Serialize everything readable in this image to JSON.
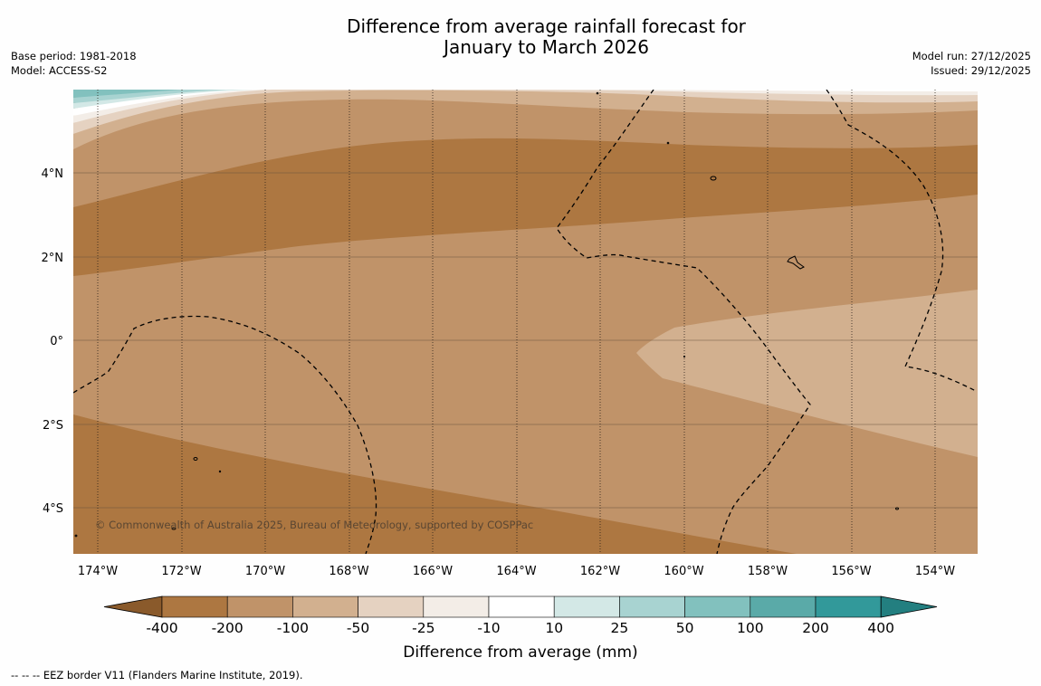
{
  "title": {
    "line1": "Difference from average rainfall forecast for",
    "line2": "January to March 2026"
  },
  "meta": {
    "base_period": "Base period: 1981-2018",
    "model": "Model: ACCESS-S2",
    "model_run": "Model run: 27/12/2025",
    "issued": "Issued: 29/12/2025"
  },
  "map": {
    "lat_labels": [
      "4°N",
      "2°N",
      "0°",
      "2°S",
      "4°S"
    ],
    "lon_labels": [
      "174°W",
      "172°W",
      "170°W",
      "168°W",
      "166°W",
      "164°W",
      "162°W",
      "160°W",
      "158°W",
      "156°W",
      "154°W"
    ],
    "copyright": "© Commonwealth of Australia 2025, Bureau of Meteorology, supported by COSPPac"
  },
  "colorbar": {
    "labels": [
      "-400",
      "-200",
      "-100",
      "-50",
      "-25",
      "-10",
      "10",
      "25",
      "50",
      "100",
      "200",
      "400"
    ],
    "colors": [
      "#8a5a2b",
      "#ad7741",
      "#c09369",
      "#d2b08f",
      "#e5d2c1",
      "#f3ede7",
      "#ffffff",
      "#d3e8e6",
      "#a8d3d1",
      "#82c1be",
      "#5aaaa8",
      "#32999a",
      "#237f80"
    ],
    "title": "Difference from average (mm)"
  },
  "footnote": "--  --  -- EEZ border V11 (Flanders Marine Institute, 2019)."
}
